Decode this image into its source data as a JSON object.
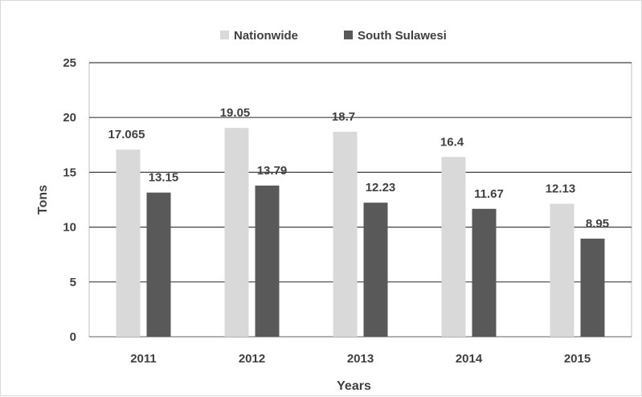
{
  "chart_data": {
    "type": "bar",
    "title": "",
    "xlabel": "Years",
    "ylabel": "Tons",
    "categories": [
      "2011",
      "2012",
      "2013",
      "2014",
      "2015"
    ],
    "series": [
      {
        "name": "Nationwide",
        "color": "#d9d9d9",
        "values": [
          17.065,
          19.05,
          18.7,
          16.4,
          12.13
        ],
        "labels": [
          "17.065",
          "19.05",
          "18.7",
          "16.4",
          "12.13"
        ]
      },
      {
        "name": "South Sulawesi",
        "color": "#595959",
        "values": [
          13.15,
          13.79,
          12.23,
          11.67,
          8.95
        ],
        "labels": [
          "13.15",
          "13.79",
          "12.23",
          "11.67",
          "8.95"
        ]
      }
    ],
    "ylim": [
      0,
      25
    ],
    "yticks": [
      0,
      5,
      10,
      15,
      20,
      25
    ],
    "grid": true,
    "legend": "top-center"
  }
}
